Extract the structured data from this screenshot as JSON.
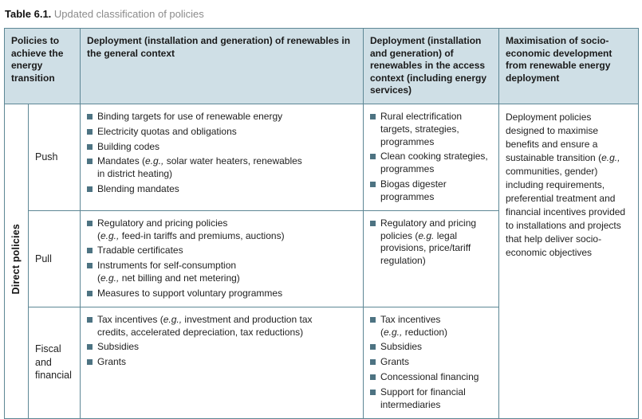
{
  "title": {
    "label": "Table 6.1.",
    "text": " Updated classification of policies"
  },
  "header": {
    "col_policies": "Policies to achieve the energy transition",
    "col_general": "Deployment (installation and generation) of renewables in the general context",
    "col_access": "Deployment (installation and generation) of renewables in the access context (including energy services)",
    "col_max": "Maximisation of socio-economic development from renewable energy deployment"
  },
  "side_label": "Direct policies",
  "rows": [
    {
      "label": "Push",
      "general": [
        "Binding targets for use of renewable energy",
        "Electricity quotas and obligations",
        "Building codes",
        "Mandates (*e.g.,* solar water heaters, renewables\nin district heating)",
        "Blending mandates"
      ],
      "access": [
        "Rural electrification targets, strategies, programmes",
        "Clean cooking strategies, programmes",
        "Biogas digester programmes"
      ]
    },
    {
      "label": "Pull",
      "general": [
        "Regulatory and pricing policies\n(*e.g.,* feed-in tariffs and premiums, auctions)",
        "Tradable certificates",
        "Instruments for self-consumption\n(*e.g.,* net billing and net metering)",
        "Measures to support voluntary programmes"
      ],
      "access": [
        "Regulatory and pricing policies (*e.g.* legal provisions, price/tariff regulation)"
      ]
    },
    {
      "label": "Fiscal and financial",
      "general": [
        "Tax incentives (*e.g.,* investment and production tax\ncredits, accelerated depreciation, tax reductions)",
        "Subsidies",
        "Grants"
      ],
      "access": [
        "Tax incentives\n(*e.g.,* reduction)",
        "Subsidies",
        "Grants",
        "Concessional financing",
        "Support for financial intermediaries"
      ]
    }
  ],
  "maximisation_text": "Deployment policies designed to maximise benefits and ensure a sustainable transition (*e.g.,* communities, gender) including requirements, preferential treatment and financial incentives provided to installations and projects that help deliver socio-economic objectives",
  "colors": {
    "header_bg": "#cfdfe6",
    "bullet_square": "#4d7382",
    "border_outer": "#2f5d6b",
    "border_inner": "#5d8795",
    "title_muted": "#8b8b8b"
  }
}
